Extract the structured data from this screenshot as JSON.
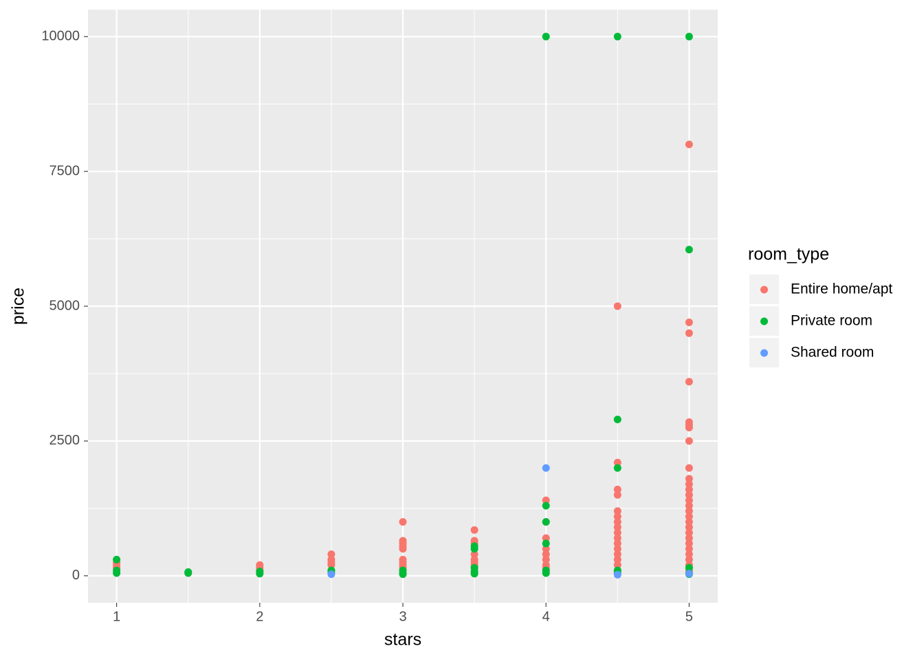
{
  "chart_data": {
    "type": "scatter",
    "x_label": "stars",
    "y_label": "price",
    "legend_title": "room_type",
    "legend_position": "right",
    "xlim": [
      0.8,
      5.2
    ],
    "ylim": [
      -500,
      10500
    ],
    "xticks": [
      1,
      2,
      3,
      4,
      5
    ],
    "yticks": [
      0,
      2500,
      5000,
      7500,
      10000
    ],
    "x_minor_grid": [
      1.5,
      2.5,
      3.5,
      4.5
    ],
    "y_minor_grid": [
      1250,
      3750,
      6250,
      8750
    ],
    "grid": true,
    "series": [
      {
        "name": "Entire home/apt",
        "color": "#F8766D",
        "x": [
          1,
          1,
          1,
          2,
          2,
          2,
          2.5,
          2.5,
          2.5,
          2.5,
          2.5,
          3,
          3,
          3,
          3,
          3,
          3,
          3,
          3,
          3,
          3,
          3.5,
          3.5,
          3.5,
          3.5,
          3.5,
          3.5,
          3.5,
          3.5,
          4,
          4,
          4,
          4,
          4,
          4,
          4,
          4,
          4,
          4.5,
          4.5,
          4.5,
          4.5,
          4.5,
          4.5,
          4.5,
          4.5,
          4.5,
          4.5,
          4.5,
          4.5,
          4.5,
          4.5,
          4.5,
          4.5,
          5,
          5,
          5,
          5,
          5,
          5,
          5,
          5,
          5,
          5,
          5,
          5,
          5,
          5,
          5,
          5,
          5,
          5,
          5,
          5,
          5,
          5,
          5,
          5,
          5,
          5,
          5,
          5
        ],
        "values": [
          250,
          150,
          200,
          200,
          150,
          100,
          400,
          300,
          200,
          250,
          100,
          1000,
          650,
          600,
          550,
          500,
          300,
          250,
          200,
          150,
          100,
          850,
          650,
          600,
          400,
          300,
          250,
          200,
          150,
          1400,
          1000,
          700,
          500,
          400,
          300,
          200,
          150,
          100,
          5000,
          2100,
          1600,
          1500,
          1200,
          1100,
          1000,
          900,
          800,
          700,
          600,
          500,
          400,
          300,
          200,
          100,
          8000,
          4700,
          4500,
          3600,
          2850,
          2800,
          2750,
          2500,
          2000,
          1800,
          1700,
          1600,
          1500,
          1400,
          1300,
          1200,
          1100,
          1000,
          900,
          800,
          700,
          600,
          500,
          400,
          300,
          200,
          100,
          50
        ]
      },
      {
        "name": "Private room",
        "color": "#00BA38",
        "x": [
          1,
          1,
          1,
          1.5,
          1.5,
          2,
          2,
          2.5,
          2.5,
          3,
          3,
          3,
          3.5,
          3.5,
          3.5,
          3.5,
          3.5,
          4,
          4,
          4,
          4,
          4,
          4,
          4.5,
          4.5,
          4.5,
          4.5,
          4.5,
          5,
          5,
          5,
          5,
          5
        ],
        "values": [
          300,
          100,
          50,
          70,
          50,
          80,
          40,
          100,
          60,
          100,
          50,
          30,
          550,
          500,
          150,
          80,
          40,
          10000,
          1300,
          1000,
          600,
          100,
          50,
          10000,
          2900,
          2000,
          100,
          50,
          10000,
          6050,
          150,
          50,
          30
        ]
      },
      {
        "name": "Shared room",
        "color": "#619CFF",
        "x": [
          2.5,
          4,
          4.5,
          5
        ],
        "values": [
          30,
          2000,
          20,
          40
        ]
      }
    ]
  }
}
